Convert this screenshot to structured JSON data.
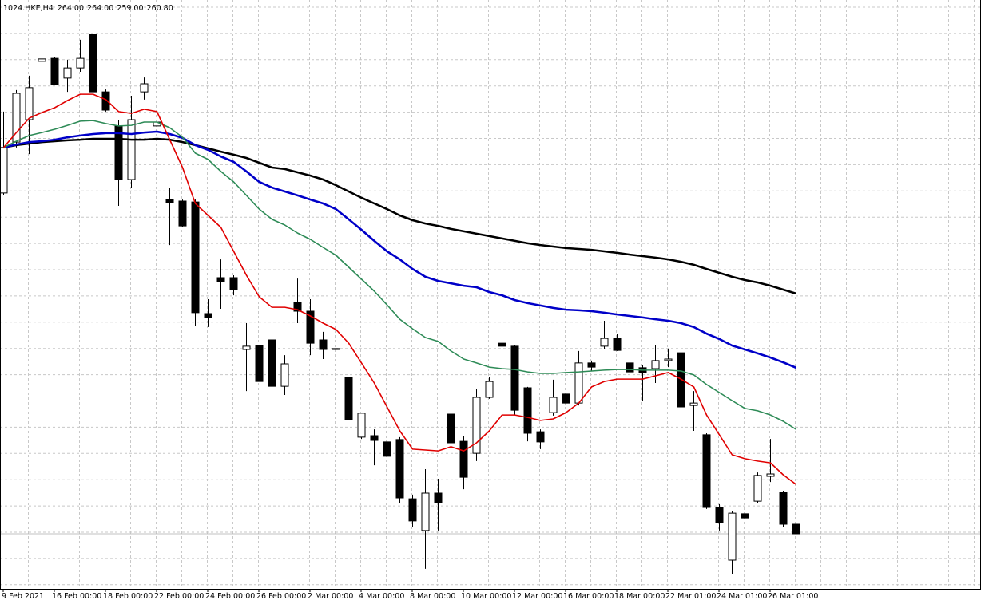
{
  "chart_data": {
    "type": "candlestick",
    "title": "1024.HKE,H4",
    "ohlc_labels": [
      "264.00",
      "264.00",
      "259.00",
      "260.80"
    ],
    "categories": [
      "9 Feb 2021",
      null,
      null,
      null,
      "16 Feb 00:00",
      null,
      null,
      null,
      "18 Feb 00:00",
      null,
      null,
      null,
      "22 Feb 00:00",
      null,
      null,
      null,
      "24 Feb 00:00",
      null,
      null,
      null,
      "26 Feb 00:00",
      null,
      null,
      null,
      "2 Mar 00:00",
      null,
      null,
      null,
      "4 Mar 00:00",
      null,
      null,
      null,
      "8 Mar 00:00",
      null,
      null,
      null,
      "10 Mar 00:00",
      null,
      null,
      null,
      "12 Mar 00:00",
      null,
      null,
      null,
      "16 Mar 00:00",
      null,
      null,
      null,
      "18 Mar 00:00",
      null,
      null,
      null,
      "22 Mar 01:00",
      null,
      null,
      null,
      "24 Mar 01:00",
      null,
      null,
      null,
      "26 Mar 01:00",
      null,
      null
    ],
    "candles": {
      "open": [
        374.7,
        391.7,
        399.2,
        418.7,
        419.7,
        413.1,
        416.5,
        427.7,
        408.5,
        397.1,
        379.2,
        408.5,
        397.1,
        372.5,
        372.0,
        371.7,
        334.4,
        346.4,
        346.4,
        322.4,
        323.7,
        325.6,
        310.1,
        338.1,
        335.2,
        325.6,
        322.7,
        313.1,
        293.1,
        293.6,
        291.5,
        292.3,
        272.5,
        261.9,
        274.4,
        300.8,
        291.7,
        287.7,
        306.4,
        324.5,
        323.5,
        309.6,
        294.9,
        301.3,
        307.5,
        304.5,
        317.9,
        323.5,
        326.1,
        317.9,
        316.3,
        316.0,
        318.7,
        321.3,
        303.7,
        293.9,
        269.6,
        252.0,
        267.5,
        271.7,
        280.0,
        274.7,
        264
      ],
      "high": [
        401.9,
        409.1,
        413.9,
        420.5,
        420.0,
        419.2,
        425.9,
        429.1,
        409.3,
        399.2,
        407.2,
        413.3,
        399.2,
        376.5,
        372.5,
        372.5,
        339.2,
        352.5,
        347.2,
        331.2,
        324.0,
        325.6,
        320.5,
        346.1,
        339.2,
        328.3,
        325.1,
        313.3,
        301.1,
        295.7,
        293.1,
        293.1,
        273.9,
        282.4,
        279.2,
        301.9,
        293.6,
        309.1,
        313.3,
        328.0,
        324.0,
        309.9,
        295.7,
        312.3,
        308.5,
        321.9,
        318.7,
        332.0,
        327.7,
        320.8,
        317.3,
        324.0,
        322.7,
        322.7,
        308.5,
        294.4,
        270.7,
        268.5,
        271.2,
        281.3,
        292.5,
        275.2,
        264
      ],
      "low": [
        373.9,
        389.9,
        387.7,
        411.2,
        410.9,
        408.5,
        415.2,
        407.7,
        401.9,
        370.4,
        376.5,
        405.9,
        396.5,
        357.3,
        363.2,
        330.4,
        329.9,
        336.0,
        340.5,
        308.5,
        311.7,
        305.3,
        307.2,
        331.2,
        320.5,
        319.2,
        320.5,
        298.7,
        292.5,
        283.7,
        286.7,
        271.2,
        263.2,
        249.1,
        261.9,
        291.2,
        275.7,
        285.1,
        305.9,
        312.0,
        300.5,
        291.7,
        289.1,
        300.3,
        303.2,
        303.7,
        315.2,
        322.4,
        321.9,
        313.9,
        305.1,
        311.2,
        316.5,
        302.7,
        295.2,
        269.1,
        261.9,
        247.2,
        260.5,
        271.2,
        278.1,
        263.2,
        259
      ],
      "close": [
        389.9,
        408.0,
        409.9,
        419.5,
        410.9,
        416.5,
        419.7,
        408.5,
        402.4,
        379.2,
        399.2,
        411.2,
        398.4,
        371.5,
        363.7,
        334.7,
        333.1,
        345.1,
        342.4,
        323.5,
        311.7,
        310.1,
        317.6,
        335.2,
        324.5,
        322.4,
        322.4,
        298.9,
        301.1,
        292.0,
        286.7,
        272.8,
        265.1,
        274.4,
        271.2,
        291.2,
        279.7,
        306.4,
        311.7,
        323.5,
        302.1,
        294.4,
        291.5,
        306.4,
        304.5,
        317.9,
        316.5,
        326.1,
        322.1,
        314.9,
        314.7,
        318.7,
        319.2,
        303.2,
        304.5,
        269.6,
        264.5,
        267.7,
        266.1,
        280.3,
        280.8,
        264.0,
        260.8
      ]
    },
    "up_color": "#ffffff",
    "down_color": "#000000",
    "series": [
      {
        "color": "#000000",
        "values": [
          389.9,
          390.7,
          391.2,
          391.7,
          392.0,
          392.3,
          392.5,
          392.8,
          392.8,
          392.8,
          392.5,
          392.5,
          392.8,
          392.5,
          391.7,
          390.7,
          389.6,
          388.5,
          387.5,
          386.4,
          384.8,
          383.2,
          382.7,
          381.6,
          380.5,
          379.2,
          377.3,
          375.2,
          373.1,
          371.2,
          369.3,
          367.2,
          365.6,
          364.5,
          363.7,
          362.7,
          361.9,
          361.1,
          360.3,
          359.5,
          358.7,
          357.9,
          357.3,
          356.8,
          356.3,
          356.0,
          355.7,
          355.2,
          354.7,
          354.1,
          353.6,
          353.1,
          352.5,
          351.7,
          350.7,
          349.3,
          348.0,
          346.7,
          345.6,
          344.8,
          343.7,
          342.4,
          341.1
        ]
      },
      {
        "color": "#0000c8",
        "values": [
          389.9,
          390.9,
          391.7,
          392.0,
          392.5,
          393.3,
          393.9,
          394.4,
          394.7,
          394.7,
          394.4,
          394.9,
          395.2,
          394.4,
          393.1,
          390.7,
          389.1,
          386.9,
          385.1,
          381.9,
          378.4,
          376.5,
          375.2,
          373.9,
          372.5,
          371.2,
          369.3,
          365.9,
          362.4,
          358.7,
          355.2,
          352.5,
          349.3,
          346.7,
          345.3,
          344.5,
          343.7,
          343.2,
          341.6,
          340.5,
          338.9,
          337.9,
          337.1,
          336.3,
          335.7,
          335.5,
          335.2,
          334.7,
          334.1,
          333.6,
          333.1,
          332.5,
          332.0,
          331.2,
          329.9,
          327.7,
          325.9,
          323.7,
          322.4,
          321.1,
          319.7,
          318.1,
          316.3
        ]
      },
      {
        "color": "#2e8b57",
        "values": [
          389.9,
          392.0,
          393.9,
          394.9,
          396.0,
          397.3,
          398.7,
          398.9,
          397.9,
          397.1,
          397.3,
          398.4,
          398.4,
          396.5,
          393.3,
          388.0,
          385.9,
          381.9,
          378.4,
          373.9,
          369.3,
          365.9,
          364.0,
          361.3,
          359.2,
          356.5,
          353.9,
          349.9,
          345.9,
          341.9,
          337.3,
          332.5,
          329.3,
          326.4,
          325.1,
          321.9,
          319.2,
          317.9,
          316.5,
          316.0,
          315.7,
          314.9,
          314.4,
          314.4,
          314.7,
          314.9,
          315.2,
          315.5,
          315.7,
          315.7,
          315.5,
          315.5,
          315.5,
          315.2,
          313.9,
          310.7,
          308.0,
          305.3,
          302.7,
          301.9,
          300.5,
          298.4,
          295.7
        ]
      },
      {
        "color": "#e00000",
        "values": [
          389.9,
          394.9,
          399.7,
          401.6,
          403.2,
          405.6,
          407.7,
          407.7,
          405.9,
          401.9,
          401.3,
          402.7,
          401.9,
          392.5,
          383.2,
          371.2,
          367.2,
          363.2,
          355.2,
          347.2,
          340.0,
          336.5,
          336.5,
          335.7,
          333.6,
          331.2,
          329.1,
          324.5,
          317.9,
          311.2,
          303.2,
          295.2,
          289.1,
          288.8,
          288.5,
          289.9,
          288.5,
          291.2,
          295.2,
          300.5,
          300.5,
          299.7,
          298.7,
          299.2,
          301.3,
          304.5,
          309.9,
          311.7,
          312.5,
          312.5,
          312.5,
          313.6,
          314.7,
          312.5,
          309.9,
          300.5,
          293.9,
          287.2,
          285.9,
          285.1,
          284.5,
          280.5,
          277.3
        ]
      }
    ],
    "ylim": [
      242.4,
      439.2
    ],
    "grid": true
  }
}
